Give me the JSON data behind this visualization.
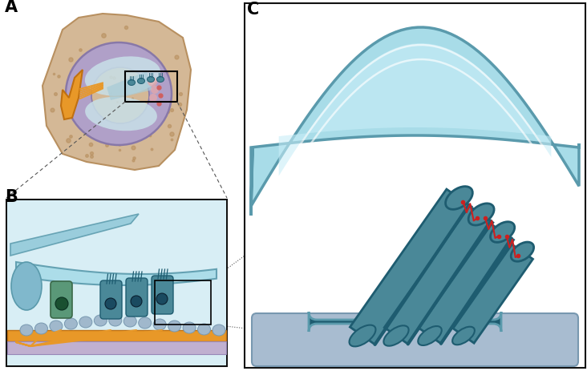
{
  "bg_color": "#ffffff",
  "panel_A_label": "A",
  "panel_B_label": "B",
  "panel_C_label": "C",
  "bone_color": "#d4b896",
  "bone_edge": "#b89060",
  "cochlea_purple": "#b0a0c8",
  "cochlea_purple_dark": "#8878a8",
  "scala_blue": "#a8ccd8",
  "scala_light": "#c8e0e8",
  "reissner_color": "#90b8c8",
  "pink_region": "#e8a8a8",
  "nerve_orange": "#e89828",
  "nerve_edge": "#c07010",
  "hair_cell_teal": "#4a8898",
  "hair_cell_dark": "#1e5c70",
  "hair_cell_light": "#6aaabb",
  "tectorial_outer": "#5a9aac",
  "tectorial_fill": "#a8dce8",
  "tectorial_inner": "#c8eef8",
  "tectorial_highlight": "#dff5fb",
  "basilar_orange": "#e89828",
  "support_lavender": "#c0b0d0",
  "cell_nucleus": "#1a4a60",
  "green_cell": "#5a9878",
  "green_nucleus": "#1a5030",
  "red_link": "#cc2020",
  "box_color": "#111111",
  "dash_color": "#555555",
  "panel_b_bg": "#d8eef5",
  "platform_color": "#a8bcd0",
  "platform_edge": "#7898b0"
}
